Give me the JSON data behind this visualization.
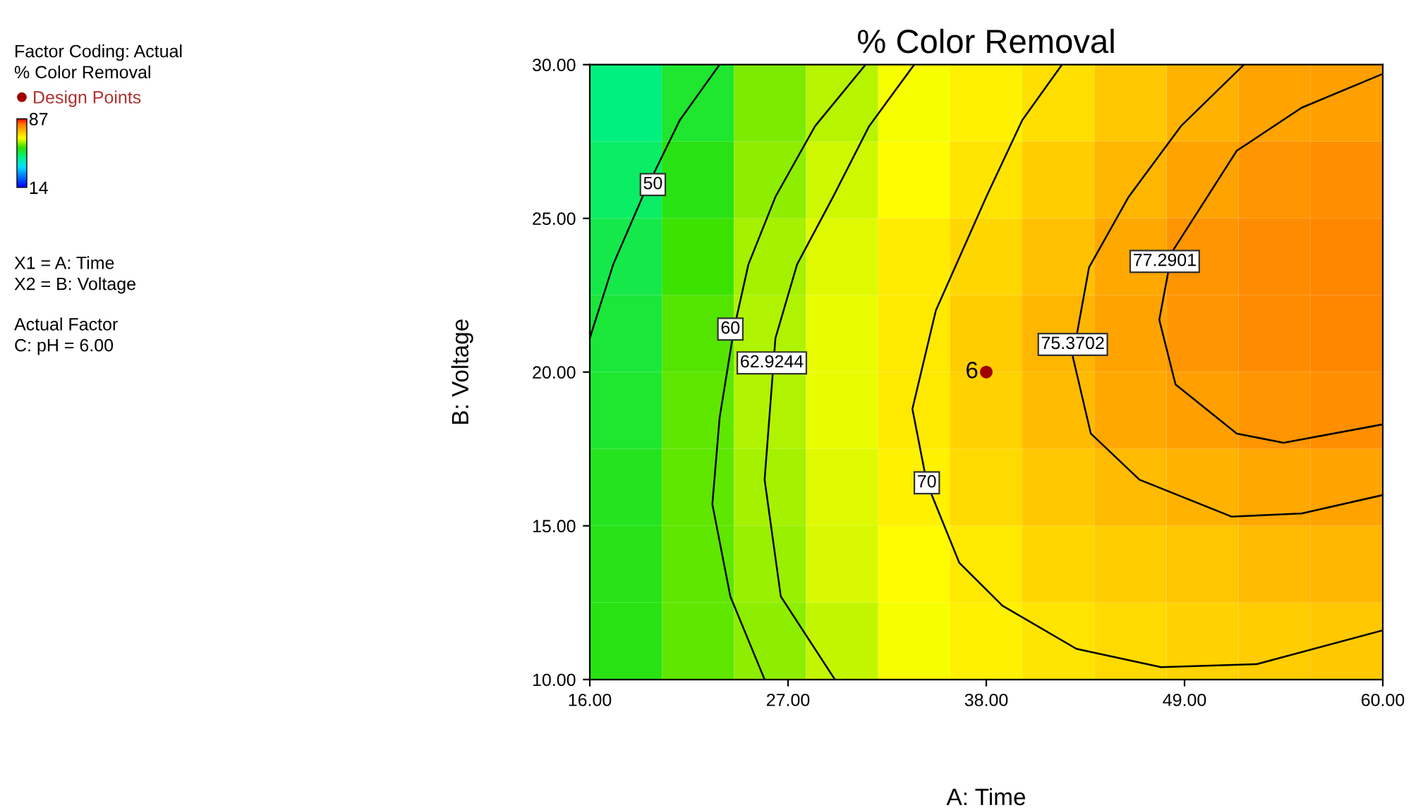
{
  "chart_data": {
    "type": "heatmap",
    "title": "% Color Removal",
    "xlabel": "A: Time",
    "ylabel": "B: Voltage",
    "clabel": "% Color Removal",
    "x": [
      18,
      22,
      26,
      30,
      34,
      38,
      42,
      46,
      50,
      54,
      58
    ],
    "y": [
      28.75,
      26.25,
      23.75,
      21.25,
      18.75,
      16.25,
      13.75,
      11.25
    ],
    "cells": [
      [
        47,
        53,
        60,
        63,
        66,
        68,
        70,
        72.5,
        75,
        76.5,
        77
      ],
      [
        49,
        55,
        61,
        64,
        67,
        69.5,
        72,
        74.5,
        76.5,
        78,
        78.5
      ],
      [
        51,
        57,
        62,
        65,
        68.5,
        71,
        73.5,
        76,
        78,
        79,
        79.5
      ],
      [
        52,
        58,
        62.5,
        65.5,
        69,
        72,
        74.5,
        76.5,
        78,
        79,
        79.5
      ],
      [
        53,
        58.5,
        62.5,
        65.5,
        69,
        71.5,
        74,
        76,
        77,
        78,
        78.5
      ],
      [
        54,
        58.5,
        62,
        65,
        68,
        70.5,
        72.5,
        74,
        75,
        76,
        76.5
      ],
      [
        54.5,
        58.5,
        61.5,
        64.5,
        67,
        69,
        71,
        72,
        73,
        74,
        74.5
      ],
      [
        55,
        58.5,
        61,
        63.5,
        66,
        68,
        69.5,
        70.5,
        71.5,
        72,
        72.5
      ]
    ],
    "clim": [
      14,
      87
    ],
    "cticks": [
      14,
      87
    ],
    "xlim": [
      16,
      60
    ],
    "ylim": [
      10,
      30
    ],
    "xticks": [
      {
        "value": 16,
        "label": "16.00"
      },
      {
        "value": 27,
        "label": "27.00"
      },
      {
        "value": 38,
        "label": "38.00"
      },
      {
        "value": 49,
        "label": "49.00"
      },
      {
        "value": 60,
        "label": "60.00"
      }
    ],
    "yticks": [
      {
        "value": 10,
        "label": "10.00"
      },
      {
        "value": 15,
        "label": "15.00"
      },
      {
        "value": 20,
        "label": "20.00"
      },
      {
        "value": 25,
        "label": "25.00"
      },
      {
        "value": 30,
        "label": "30.00"
      }
    ],
    "grid": false,
    "legend": "left",
    "series": [
      {
        "type": "line",
        "color": "#000000",
        "x": [
          16,
          17.3,
          19.0,
          21,
          23.2
        ],
        "values": [
          21.1,
          23.5,
          25.8,
          28.2,
          30
        ]
      },
      {
        "type": "line",
        "color": "#000000",
        "x": [
          31.3,
          28.5,
          26.3,
          24.8,
          24.0,
          23.2,
          22.8,
          23.8,
          25.7
        ],
        "values": [
          30,
          28,
          25.7,
          23.5,
          21.4,
          18.5,
          15.7,
          12.7,
          10
        ]
      },
      {
        "type": "line",
        "color": "#000000",
        "x": [
          34.0,
          31.5,
          29.5,
          27.5,
          26.3,
          25.7,
          26.6,
          29.6
        ],
        "values": [
          30,
          28,
          25.7,
          23.5,
          21.1,
          16.5,
          12.7,
          10
        ]
      },
      {
        "type": "line",
        "color": "#000000",
        "x": [
          42.2,
          40,
          38,
          35.2,
          33.9,
          34.7,
          36.5,
          38.9,
          43,
          47.7,
          53,
          60
        ],
        "values": [
          30,
          28.2,
          25.7,
          22,
          18.8,
          16.4,
          13.8,
          12.4,
          11,
          10.4,
          10.5,
          11.6
        ]
      },
      {
        "type": "line",
        "color": "#000000",
        "x": [
          52.3,
          48.8,
          45.9,
          43.7,
          42.8,
          43.8,
          46.5,
          51.6,
          55.5,
          60
        ],
        "values": [
          30,
          28,
          25.7,
          23.4,
          20.5,
          18.0,
          16.5,
          15.3,
          15.4,
          16.0
        ]
      },
      {
        "type": "line",
        "color": "#000000",
        "x": [
          60,
          55.5,
          51.9,
          48.3,
          47.6,
          48.5,
          51.9,
          54.5,
          60
        ],
        "values": [
          29.7,
          28.6,
          27.2,
          23.9,
          21.7,
          19.6,
          18.0,
          17.7,
          18.3
        ]
      },
      {
        "type": "scatter",
        "name": "Design Points",
        "color": "#a00000",
        "marker": "circle",
        "x": [
          38
        ],
        "values": [
          20
        ]
      }
    ],
    "annotations": [
      "Factor Coding: Actual",
      "X1 = A: Time",
      "X2 = B: Voltage",
      "Actual Factor",
      "C: pH = 6.00",
      {
        "text": "50",
        "x": 19.5,
        "y": 26.1
      },
      {
        "text": "60",
        "x": 23.8,
        "y": 21.4
      },
      {
        "text": "62.9244",
        "x": 26.1,
        "y": 20.3
      },
      {
        "text": "70",
        "x": 34.7,
        "y": 16.4
      },
      {
        "text": "75.3702",
        "x": 42.8,
        "y": 20.9
      },
      {
        "text": "77.2901",
        "x": 47.9,
        "y": 23.6
      },
      {
        "text": "6",
        "x": 38,
        "y": 20
      }
    ]
  }
}
